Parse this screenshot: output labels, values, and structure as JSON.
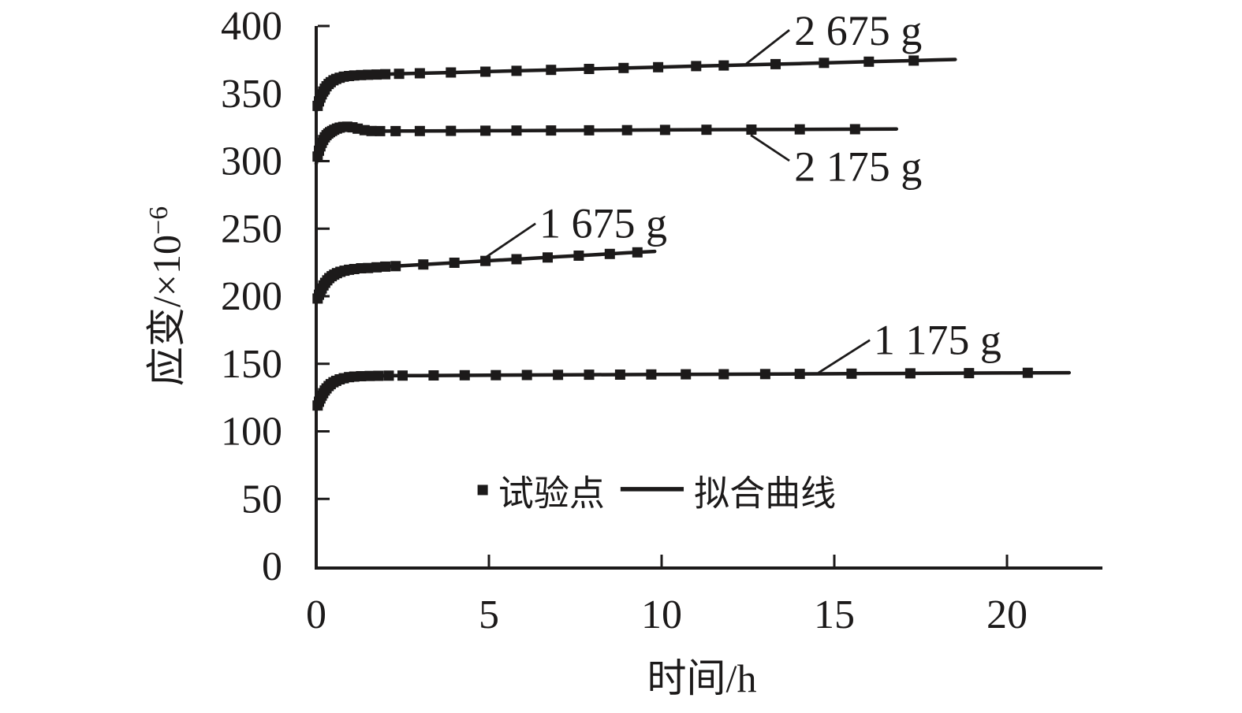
{
  "colors": {
    "ink": "#1c1a1a",
    "background": "#ffffff"
  },
  "chart_data": {
    "type": "line",
    "title": "",
    "xlabel": "时间/h",
    "ylabel": "应变/×10⁻⁶",
    "ylabel_main": "应变/×10",
    "ylabel_sup": "−6",
    "xlim": [
      0,
      22.8
    ],
    "ylim": [
      0,
      400
    ],
    "x_ticks": [
      0,
      5,
      10,
      15,
      20
    ],
    "y_ticks": [
      0,
      50,
      100,
      150,
      200,
      250,
      300,
      350,
      400
    ],
    "grid": false,
    "legend_items": [
      {
        "label": "试验点",
        "type": "marker"
      },
      {
        "label": "拟合曲线",
        "type": "line"
      }
    ],
    "legend_layout": {
      "marker_at": [
        4.82,
        56.6
      ],
      "marker_text_at": [
        5.27,
        45.3
      ],
      "line_from": [
        8.81,
        57.2
      ],
      "line_to": [
        10.64,
        57.2
      ],
      "line_text_at": [
        10.94,
        45.3
      ]
    },
    "series": [
      {
        "name": "2675g",
        "mass_g": 2675,
        "annotation": {
          "text": "2 675 g",
          "leader": [
            [
              12.45,
              372.0
            ],
            [
              13.7,
              397.0
            ]
          ],
          "text_at": [
            13.84,
            386.0
          ]
        },
        "line": [
          [
            0,
            337
          ],
          [
            0.05,
            341.7
          ],
          [
            0.1,
            345.6
          ],
          [
            0.15,
            348.8
          ],
          [
            0.2,
            351.5
          ],
          [
            0.3,
            355.4
          ],
          [
            0.4,
            358
          ],
          [
            0.5,
            359.8
          ],
          [
            0.65,
            361.5
          ],
          [
            0.8,
            362.5
          ],
          [
            1,
            363.2
          ],
          [
            1.3,
            363.7
          ],
          [
            1.6,
            364
          ],
          [
            2,
            364.3
          ],
          [
            2.5,
            364.7
          ],
          [
            3,
            365
          ],
          [
            4,
            365.6
          ],
          [
            5,
            366.3
          ],
          [
            6,
            367
          ],
          [
            7,
            367.6
          ],
          [
            8,
            368.3
          ],
          [
            9,
            368.9
          ],
          [
            10,
            369.6
          ],
          [
            11,
            370.3
          ],
          [
            12,
            370.9
          ],
          [
            13,
            371.6
          ],
          [
            14,
            372.2
          ],
          [
            15,
            372.9
          ],
          [
            16,
            373.6
          ],
          [
            17,
            374.2
          ],
          [
            18,
            374.9
          ],
          [
            18.5,
            375.2
          ]
        ],
        "markers": [
          [
            0.04,
            340.9
          ],
          [
            0.08,
            344.2
          ],
          [
            0.12,
            347
          ],
          [
            0.16,
            349.4
          ],
          [
            0.2,
            351.5
          ],
          [
            0.25,
            353.6
          ],
          [
            0.3,
            355.4
          ],
          [
            0.36,
            357.1
          ],
          [
            0.42,
            358.4
          ],
          [
            0.5,
            359.8
          ],
          [
            0.58,
            360.8
          ],
          [
            0.68,
            361.7
          ],
          [
            0.8,
            362.5
          ],
          [
            0.95,
            363
          ],
          [
            1.1,
            363.4
          ],
          [
            1.3,
            363.7
          ],
          [
            1.5,
            363.9
          ],
          [
            1.75,
            364.1
          ],
          [
            2,
            364.3
          ],
          [
            2.4,
            364.6
          ],
          [
            3,
            365
          ],
          [
            3.9,
            365.6
          ],
          [
            4.9,
            366.2
          ],
          [
            5.8,
            366.8
          ],
          [
            6.8,
            367.5
          ],
          [
            7.9,
            368.2
          ],
          [
            8.9,
            368.9
          ],
          [
            9.9,
            369.5
          ],
          [
            11,
            370.3
          ],
          [
            11.8,
            370.8
          ],
          [
            13.3,
            371.8
          ],
          [
            14.7,
            372.7
          ],
          [
            16,
            373.6
          ],
          [
            17.3,
            374.4
          ]
        ]
      },
      {
        "name": "2175g",
        "mass_g": 2175,
        "annotation": {
          "text": "2 175 g",
          "leader": [
            [
              12.58,
              319.3
            ],
            [
              13.7,
              300.3
            ]
          ],
          "text_at": [
            13.84,
            285.5
          ]
        },
        "line": [
          [
            0,
            298.1
          ],
          [
            0.05,
            304.6
          ],
          [
            0.1,
            309.4
          ],
          [
            0.15,
            312.9
          ],
          [
            0.2,
            315.6
          ],
          [
            0.3,
            319.2
          ],
          [
            0.4,
            321.4
          ],
          [
            0.5,
            322.9
          ],
          [
            0.6,
            324.1
          ],
          [
            0.7,
            324.9
          ],
          [
            0.85,
            325.5
          ],
          [
            1,
            325.2
          ],
          [
            1.2,
            324
          ],
          [
            1.4,
            322.9
          ],
          [
            1.7,
            322.3
          ],
          [
            2,
            322.2
          ],
          [
            2.5,
            322.3
          ],
          [
            3,
            322.3
          ],
          [
            4,
            322.4
          ],
          [
            5,
            322.5
          ],
          [
            6,
            322.6
          ],
          [
            8,
            322.8
          ],
          [
            10,
            323.1
          ],
          [
            12,
            323.3
          ],
          [
            14,
            323.5
          ],
          [
            16,
            323.7
          ],
          [
            16.8,
            323.8
          ]
        ],
        "markers": [
          [
            0.04,
            303.4
          ],
          [
            0.08,
            307.7
          ],
          [
            0.12,
            310.9
          ],
          [
            0.16,
            313.5
          ],
          [
            0.2,
            315.6
          ],
          [
            0.25,
            317.6
          ],
          [
            0.3,
            319.2
          ],
          [
            0.35,
            320.4
          ],
          [
            0.4,
            321.4
          ],
          [
            0.46,
            322.3
          ],
          [
            0.52,
            323.2
          ],
          [
            0.6,
            324.1
          ],
          [
            0.68,
            324.8
          ],
          [
            0.78,
            325.3
          ],
          [
            0.9,
            325.5
          ],
          [
            1.05,
            325
          ],
          [
            1.2,
            324
          ],
          [
            1.4,
            322.9
          ],
          [
            1.6,
            322.3
          ],
          [
            1.85,
            322.2
          ],
          [
            2.3,
            322.2
          ],
          [
            3,
            322.3
          ],
          [
            3.9,
            322.4
          ],
          [
            4.9,
            322.5
          ],
          [
            5.8,
            322.6
          ],
          [
            6.8,
            322.7
          ],
          [
            7.9,
            322.8
          ],
          [
            9,
            322.9
          ],
          [
            10.1,
            323.1
          ],
          [
            11.3,
            323.2
          ],
          [
            12.6,
            323.3
          ],
          [
            14,
            323.5
          ],
          [
            15.6,
            323.6
          ]
        ]
      },
      {
        "name": "1675g",
        "mass_g": 1675,
        "annotation": {
          "text": "1 675 g",
          "leader": [
            [
              4.89,
              228.5
            ],
            [
              6.35,
              253.8
            ]
          ],
          "text_at": [
            6.46,
            243.3
          ]
        },
        "line": [
          [
            0,
            195
          ],
          [
            0.05,
            199
          ],
          [
            0.1,
            202.4
          ],
          [
            0.15,
            205.2
          ],
          [
            0.2,
            207.5
          ],
          [
            0.3,
            211.2
          ],
          [
            0.4,
            213.8
          ],
          [
            0.5,
            215.7
          ],
          [
            0.65,
            217.6
          ],
          [
            0.8,
            218.8
          ],
          [
            1,
            219.8
          ],
          [
            1.3,
            220.7
          ],
          [
            1.6,
            221.2
          ],
          [
            2,
            221.9
          ],
          [
            2.5,
            222.6
          ],
          [
            3,
            223.3
          ],
          [
            4,
            224.8
          ],
          [
            5,
            226.3
          ],
          [
            6,
            227.7
          ],
          [
            7,
            229.2
          ],
          [
            8,
            230.6
          ],
          [
            9,
            232.1
          ],
          [
            9.8,
            233.2
          ]
        ],
        "markers": [
          [
            0.04,
            198.3
          ],
          [
            0.08,
            201.1
          ],
          [
            0.12,
            203.5
          ],
          [
            0.16,
            205.7
          ],
          [
            0.21,
            208
          ],
          [
            0.26,
            209.9
          ],
          [
            0.32,
            211.8
          ],
          [
            0.38,
            213.4
          ],
          [
            0.45,
            214.8
          ],
          [
            0.52,
            216
          ],
          [
            0.6,
            217.1
          ],
          [
            0.7,
            218.1
          ],
          [
            0.82,
            218.9
          ],
          [
            0.95,
            219.6
          ],
          [
            1.1,
            220.1
          ],
          [
            1.3,
            220.7
          ],
          [
            1.5,
            220.9
          ],
          [
            1.75,
            221.4
          ],
          [
            2,
            221.9
          ],
          [
            2.3,
            222.3
          ],
          [
            3.1,
            223.5
          ],
          [
            4,
            224.8
          ],
          [
            4.9,
            226.1
          ],
          [
            5.8,
            227.4
          ],
          [
            6.7,
            228.7
          ],
          [
            7.6,
            230
          ],
          [
            8.5,
            231.3
          ],
          [
            9.3,
            232.5
          ]
        ]
      },
      {
        "name": "1175g",
        "mass_g": 1175,
        "annotation": {
          "text": "1 175 g",
          "leader": [
            [
              14.54,
              143.3
            ],
            [
              16.03,
              167.5
            ]
          ],
          "text_at": [
            16.14,
            157.0
          ]
        },
        "line": [
          [
            0,
            116
          ],
          [
            0.05,
            119.8
          ],
          [
            0.1,
            123.1
          ],
          [
            0.15,
            125.9
          ],
          [
            0.2,
            128.2
          ],
          [
            0.3,
            131.8
          ],
          [
            0.4,
            134.5
          ],
          [
            0.5,
            136.3
          ],
          [
            0.65,
            138.2
          ],
          [
            0.8,
            139.3
          ],
          [
            1,
            140.2
          ],
          [
            1.3,
            140.8
          ],
          [
            1.7,
            141.1
          ],
          [
            2.2,
            141.2
          ],
          [
            3,
            141.3
          ],
          [
            4,
            141.4
          ],
          [
            5,
            141.6
          ],
          [
            6,
            141.7
          ],
          [
            8,
            141.9
          ],
          [
            10,
            142.1
          ],
          [
            12,
            142.3
          ],
          [
            14,
            142.5
          ],
          [
            16,
            142.8
          ],
          [
            18,
            143
          ],
          [
            20,
            143.2
          ],
          [
            21.8,
            143.4
          ]
        ],
        "markers": [
          [
            0.04,
            119.1
          ],
          [
            0.08,
            121.9
          ],
          [
            0.12,
            124.3
          ],
          [
            0.16,
            126.4
          ],
          [
            0.2,
            128.2
          ],
          [
            0.25,
            130.2
          ],
          [
            0.3,
            131.8
          ],
          [
            0.36,
            133.5
          ],
          [
            0.42,
            134.9
          ],
          [
            0.5,
            136.3
          ],
          [
            0.58,
            137.4
          ],
          [
            0.68,
            138.5
          ],
          [
            0.8,
            139.3
          ],
          [
            0.95,
            140.1
          ],
          [
            1.1,
            140.5
          ],
          [
            1.3,
            140.8
          ],
          [
            1.55,
            141
          ],
          [
            1.8,
            141.1
          ],
          [
            2.1,
            141.2
          ],
          [
            2.5,
            141.3
          ],
          [
            3.4,
            141.4
          ],
          [
            4.3,
            141.5
          ],
          [
            5.2,
            141.6
          ],
          [
            6.1,
            141.7
          ],
          [
            7,
            141.8
          ],
          [
            7.9,
            141.9
          ],
          [
            8.8,
            142
          ],
          [
            9.7,
            142.1
          ],
          [
            10.7,
            142.2
          ],
          [
            11.8,
            142.3
          ],
          [
            13,
            142.4
          ],
          [
            14,
            142.5
          ],
          [
            15.5,
            142.7
          ],
          [
            17.2,
            142.9
          ],
          [
            18.9,
            143.1
          ],
          [
            20.6,
            143.3
          ]
        ]
      }
    ]
  }
}
